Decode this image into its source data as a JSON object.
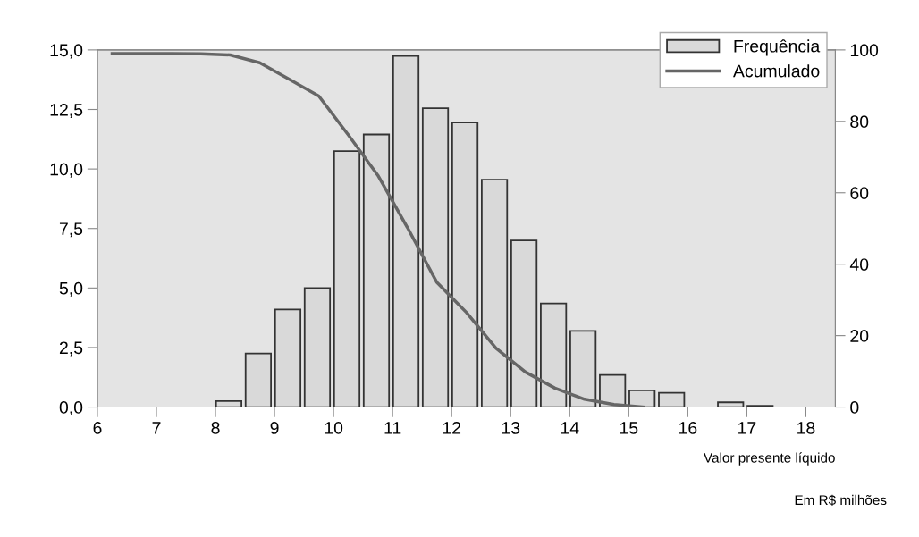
{
  "chart_data": {
    "type": "histogram",
    "xlabel": "Valor presente líquido",
    "bins": [
      6,
      6.5,
      7,
      7.5,
      8,
      8.5,
      9,
      9.5,
      10,
      10.5,
      11,
      11.5,
      12,
      12.5,
      13,
      13.5,
      14,
      14.5,
      15,
      15.5,
      16,
      16.5,
      17,
      17.5,
      18,
      18.5
    ],
    "series": [
      {
        "name": "Frequência",
        "color": "#d9d9d9",
        "values": [
          0,
          0,
          0,
          0,
          0.25,
          2.25,
          4.1,
          5.0,
          10.75,
          11.45,
          14.75,
          12.55,
          11.95,
          9.55,
          7.0,
          4.35,
          3.2,
          1.35,
          0.7,
          0.6,
          0,
          0.2,
          0.05,
          0,
          0
        ]
      },
      {
        "name": "Acumulado",
        "type": "line",
        "axis": "y2",
        "color": "#666666",
        "x": [
          6.25,
          6.75,
          7.25,
          7.75,
          8.25,
          8.75,
          9.25,
          9.75,
          10.25,
          10.75,
          11.25,
          11.75,
          12.25,
          12.75,
          13.25,
          13.75,
          14.25,
          14.75,
          15.25
        ],
        "values": [
          99.0,
          99.0,
          99.0,
          98.9,
          98.6,
          96.4,
          91.8,
          87.1,
          76.2,
          64.9,
          50.3,
          34.9,
          26.5,
          16.5,
          9.8,
          5.3,
          2.2,
          0.7,
          0
        ]
      }
    ],
    "xlim": [
      6,
      18.5
    ],
    "xticks": [
      6,
      7,
      8,
      9,
      10,
      11,
      12,
      13,
      14,
      15,
      16,
      17,
      18
    ],
    "ylim": [
      0,
      15
    ],
    "yticks": [
      {
        "value": 0,
        "label": "0,0"
      },
      {
        "value": 2.5,
        "label": "2,5"
      },
      {
        "value": 5,
        "label": "5,0"
      },
      {
        "value": 7.5,
        "label": "7,5"
      },
      {
        "value": 10,
        "label": "10,0"
      },
      {
        "value": 12.5,
        "label": "12,5"
      },
      {
        "value": 15,
        "label": "15,0"
      }
    ],
    "y2lim": [
      0,
      100
    ],
    "y2ticks": [
      0,
      20,
      40,
      60,
      80,
      100
    ],
    "annotations": [
      "Em R$ milhões"
    ],
    "legend": "top right",
    "grid": false
  }
}
